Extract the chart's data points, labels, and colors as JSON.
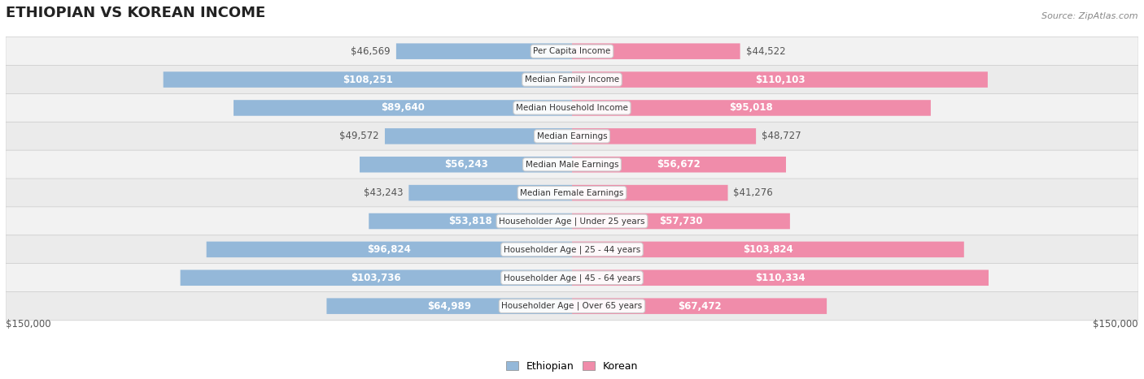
{
  "title": "ETHIOPIAN VS KOREAN INCOME",
  "source": "Source: ZipAtlas.com",
  "categories": [
    "Per Capita Income",
    "Median Family Income",
    "Median Household Income",
    "Median Earnings",
    "Median Male Earnings",
    "Median Female Earnings",
    "Householder Age | Under 25 years",
    "Householder Age | 25 - 44 years",
    "Householder Age | 45 - 64 years",
    "Householder Age | Over 65 years"
  ],
  "ethiopian_values": [
    46569,
    108251,
    89640,
    49572,
    56243,
    43243,
    53818,
    96824,
    103736,
    64989
  ],
  "korean_values": [
    44522,
    110103,
    95018,
    48727,
    56672,
    41276,
    57730,
    103824,
    110334,
    67472
  ],
  "ethiopian_labels": [
    "$46,569",
    "$108,251",
    "$89,640",
    "$49,572",
    "$56,243",
    "$43,243",
    "$53,818",
    "$96,824",
    "$103,736",
    "$64,989"
  ],
  "korean_labels": [
    "$44,522",
    "$110,103",
    "$95,018",
    "$48,727",
    "$56,672",
    "$41,276",
    "$57,730",
    "$103,824",
    "$110,334",
    "$67,472"
  ],
  "max_value": 150000,
  "ethiopian_color": "#94b8d9",
  "korean_color": "#f08caa",
  "ethiopian_color_dark": "#6a9fc7",
  "korean_color_dark": "#e8608a",
  "bar_height": 0.55,
  "row_bg_color": "#f0f0f0",
  "row_bg_alt_color": "#e8e8e8",
  "label_fontsize": 8.5,
  "title_fontsize": 13,
  "axis_label_color": "#555555",
  "background_color": "#ffffff"
}
